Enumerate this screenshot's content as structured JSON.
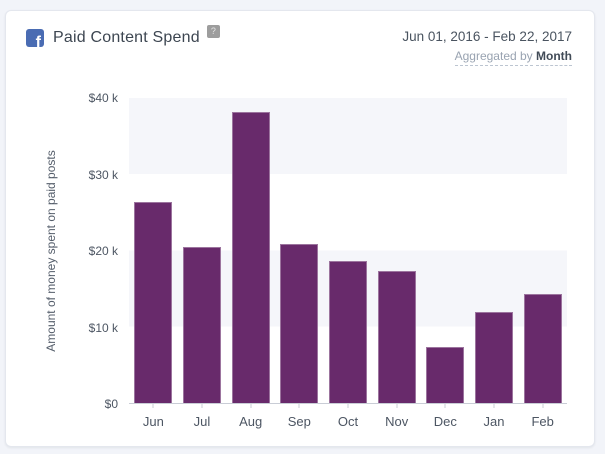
{
  "header": {
    "title": "Paid Content Spend",
    "source_icon": "facebook-icon",
    "help": "?",
    "date_range": "Jun 01, 2016 - Feb 22, 2017",
    "aggregated_prefix": "Aggregated by",
    "aggregated_value": "Month"
  },
  "colors": {
    "bar": "#682a6b",
    "facebook_blue": "#4a6cb3",
    "band_gray": "#f5f6fa",
    "page_background": "#f2f4f9"
  },
  "chart_data": {
    "type": "bar",
    "title": "Paid Content Spend",
    "categories": [
      "Jun",
      "Jul",
      "Aug",
      "Sep",
      "Oct",
      "Nov",
      "Dec",
      "Jan",
      "Feb"
    ],
    "values": [
      26.4,
      20.5,
      38.2,
      20.9,
      18.6,
      17.3,
      7.3,
      11.9,
      14.3
    ],
    "values_unit": "thousand USD",
    "xlabel": "",
    "ylabel": "Amount of money spent on paid posts",
    "ylim": [
      0,
      40
    ],
    "yticks": [
      {
        "value": 40,
        "label": "$40 k"
      },
      {
        "value": 30,
        "label": "$30 k"
      },
      {
        "value": 20,
        "label": "$20 k"
      },
      {
        "value": 10,
        "label": "$10 k"
      },
      {
        "value": 0,
        "label": "$0"
      }
    ],
    "legend": "none",
    "grid": "alternating horizontal bands"
  }
}
